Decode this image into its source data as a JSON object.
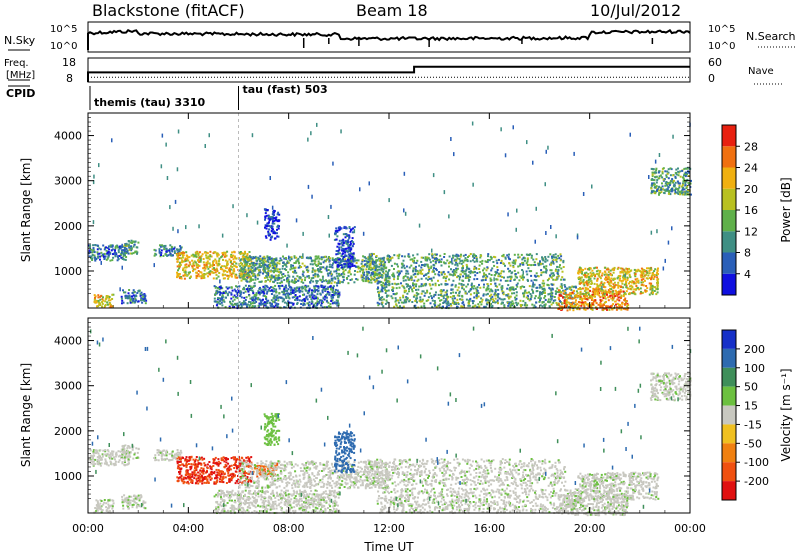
{
  "header": {
    "station": "Blackstone (fitACF)",
    "beam": "Beam 18",
    "date": "10/Jul/2012"
  },
  "noise_panel": {
    "left_label": "N.Sky",
    "right_label": "N.Search",
    "ticks_left": [
      "10^5",
      "10^0"
    ],
    "ticks_right": [
      "10^5",
      "10^0"
    ]
  },
  "freq_panel": {
    "left_label_1": "Freq.",
    "left_label_2": "[MHz]",
    "right_label": "Nave",
    "ticks_left": [
      "18",
      "8"
    ],
    "ticks_right": [
      "60",
      "0"
    ],
    "freq_value": 10,
    "nave_before": 24,
    "nave_after": 38,
    "nave_step_hour": 13.0
  },
  "cpid_panel": {
    "label": "CPID",
    "modes": [
      {
        "name": "themis (tau) 3310",
        "start_hour": 0
      },
      {
        "name": "tau (fast) 503",
        "start_hour": 6
      }
    ]
  },
  "power_panel": {
    "ylabel": "Slant Range [km]",
    "yticks": [
      "1000",
      "2000",
      "3000",
      "4000"
    ],
    "colorbar_label": "Power [dB]",
    "colorbar_ticks": [
      "4",
      "8",
      "12",
      "16",
      "20",
      "24",
      "28"
    ],
    "colors": [
      "#1010e0",
      "#2a5fb8",
      "#3f8f84",
      "#5fb04a",
      "#b8c020",
      "#f0b010",
      "#f07010",
      "#e82010"
    ]
  },
  "velocity_panel": {
    "ylabel": "Slant Range [km]",
    "yticks": [
      "1000",
      "2000",
      "3000",
      "4000"
    ],
    "colorbar_label": "Velocity [m s⁻¹]",
    "colorbar_ticks": [
      "200",
      "100",
      "50",
      "15",
      "-15",
      "-50",
      "-100",
      "-200"
    ],
    "colors": [
      "#1630c8",
      "#2e6bb0",
      "#3f8f5a",
      "#6cc040",
      "#c8c8c0",
      "#f0c020",
      "#f08010",
      "#f05010",
      "#e01010"
    ]
  },
  "xaxis": {
    "label": "Time UT",
    "ticks": [
      "00:00",
      "04:00",
      "08:00",
      "12:00",
      "16:00",
      "20:00",
      "00:00"
    ]
  },
  "chart_data": {
    "type": "heatmap",
    "x_range_hours": [
      0,
      24
    ],
    "y_range_km": [
      180,
      4500
    ],
    "scatter_regions": [
      {
        "t0": 0.0,
        "t1": 1.6,
        "r0": 1250,
        "r1": 1600,
        "power": 12,
        "velocity": 0
      },
      {
        "t0": 1.3,
        "t1": 2.0,
        "r0": 1400,
        "r1": 1700,
        "power": 14,
        "velocity": 0
      },
      {
        "t0": 2.6,
        "t1": 3.7,
        "r0": 1350,
        "r1": 1600,
        "power": 12,
        "velocity": 0
      },
      {
        "t0": 3.5,
        "t1": 6.5,
        "r0": 850,
        "r1": 1450,
        "power": 22,
        "velocity": -150
      },
      {
        "t0": 6.5,
        "t1": 7.5,
        "r0": 1000,
        "r1": 1300,
        "power": 14,
        "velocity": -100
      },
      {
        "t0": 6.0,
        "t1": 12.0,
        "r0": 750,
        "r1": 1350,
        "power": 14,
        "velocity": 0
      },
      {
        "t0": 11.0,
        "t1": 19.0,
        "r0": 800,
        "r1": 1400,
        "power": 16,
        "velocity": 0
      },
      {
        "t0": 0.2,
        "t1": 1.0,
        "r0": 200,
        "r1": 500,
        "power": 22,
        "velocity": 0
      },
      {
        "t0": 1.3,
        "t1": 2.3,
        "r0": 300,
        "r1": 600,
        "power": 10,
        "velocity": 0
      },
      {
        "t0": 5.0,
        "t1": 10.0,
        "r0": 200,
        "r1": 700,
        "power": 12,
        "velocity": 0
      },
      {
        "t0": 11.5,
        "t1": 19.5,
        "r0": 200,
        "r1": 750,
        "power": 16,
        "velocity": 0
      },
      {
        "t0": 18.7,
        "t1": 21.5,
        "r0": 150,
        "r1": 600,
        "power": 28,
        "velocity": 0
      },
      {
        "t0": 19.5,
        "t1": 22.7,
        "r0": 500,
        "r1": 1100,
        "power": 22,
        "velocity": 0
      },
      {
        "t0": 22.4,
        "t1": 24.0,
        "r0": 2700,
        "r1": 3300,
        "power": 16,
        "velocity": 0
      },
      {
        "t0": 7.0,
        "t1": 7.6,
        "r0": 1700,
        "r1": 2400,
        "power": 8,
        "velocity": 50
      },
      {
        "t0": 9.8,
        "t1": 10.6,
        "r0": 1100,
        "r1": 2000,
        "power": 8,
        "velocity": 100
      }
    ]
  }
}
